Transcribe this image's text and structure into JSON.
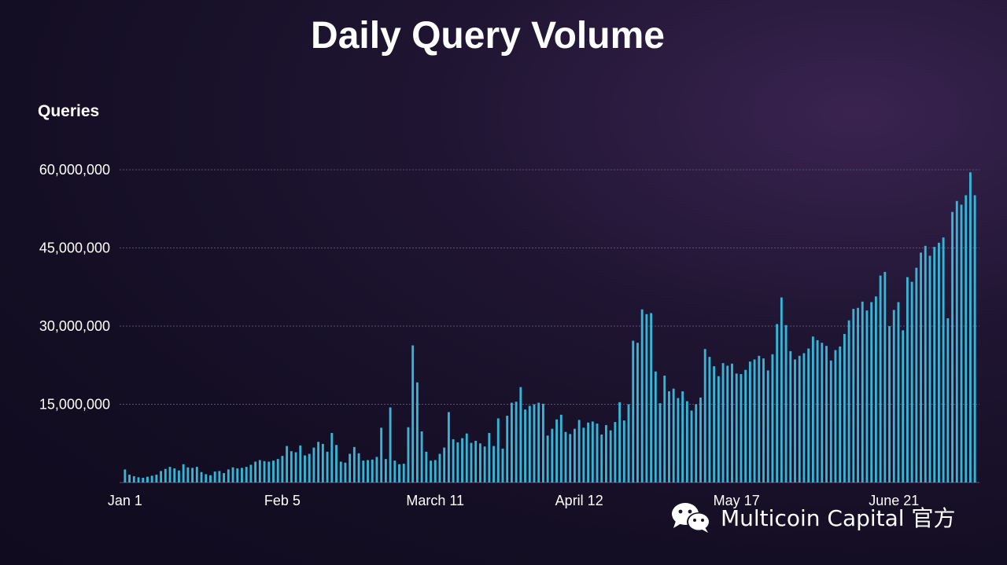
{
  "chart_data": {
    "type": "bar",
    "title": "Daily Query Volume",
    "ylabel": "Queries",
    "xlabel": "",
    "ylim": [
      0,
      60000000
    ],
    "yticks": [
      "15,000,000",
      "30,000,000",
      "45,000,000",
      "60,000,000"
    ],
    "ytick_values": [
      15000000,
      30000000,
      45000000,
      60000000
    ],
    "xticks": [
      "Jan 1",
      "Feb 5",
      "March 11",
      "April 12",
      "May 17",
      "June 21"
    ],
    "xtick_index": [
      0,
      35,
      69,
      101,
      136,
      171
    ],
    "grid": true,
    "bar_color": "#35b6d6",
    "values": [
      2.5,
      1.5,
      1.2,
      1.0,
      0.9,
      1.1,
      1.3,
      1.5,
      2.2,
      2.6,
      3.0,
      2.7,
      2.3,
      3.5,
      2.9,
      2.8,
      3.0,
      2.0,
      1.6,
      1.4,
      2.1,
      2.2,
      1.8,
      2.5,
      2.9,
      2.7,
      2.8,
      3.0,
      3.4,
      4.0,
      4.3,
      4.1,
      4.0,
      4.2,
      4.5,
      5.1,
      7.0,
      6.0,
      5.8,
      7.1,
      5.2,
      5.5,
      6.7,
      7.8,
      7.4,
      5.9,
      9.5,
      7.2,
      4.0,
      3.8,
      5.5,
      6.8,
      5.6,
      4.2,
      4.3,
      4.4,
      4.9,
      10.5,
      4.5,
      14.4,
      4.2,
      3.5,
      3.6,
      10.6,
      26.3,
      19.2,
      9.8,
      5.9,
      4.2,
      4.3,
      5.5,
      6.7,
      13.5,
      8.3,
      7.7,
      8.5,
      9.4,
      7.6,
      8.0,
      7.5,
      6.9,
      9.5,
      7.0,
      12.3,
      6.5,
      12.8,
      15.3,
      15.5,
      18.3,
      14.0,
      14.7,
      15.0,
      15.3,
      15.1,
      9.0,
      10.3,
      12.1,
      13.0,
      9.7,
      9.3,
      10.3,
      12.0,
      10.5,
      11.5,
      11.7,
      11.3,
      9.2,
      11.0,
      10.0,
      11.6,
      15.4,
      11.9,
      15.0,
      27.2,
      26.8,
      33.2,
      32.3,
      32.5,
      21.3,
      15.2,
      20.5,
      17.5,
      18.0,
      16.2,
      17.5,
      15.6,
      13.8,
      15.0,
      16.3,
      25.6,
      24.1,
      22.3,
      20.4,
      22.9,
      22.4,
      22.8,
      20.9,
      20.8,
      21.6,
      23.2,
      23.6,
      24.3,
      23.8,
      21.5,
      24.6,
      30.4,
      35.5,
      30.2,
      25.2,
      23.6,
      24.3,
      24.8,
      25.7,
      28.0,
      27.3,
      26.8,
      26.2,
      23.4,
      25.4,
      26.1,
      28.5,
      31.1,
      33.3,
      33.5,
      34.7,
      33.0,
      34.6,
      35.7,
      39.7,
      40.4,
      30.0,
      33.1,
      34.6,
      29.2,
      39.4,
      38.5,
      41.2,
      44.1,
      45.4,
      43.5,
      45.2,
      46.0,
      47.0,
      31.5,
      51.9,
      54.0,
      53.3,
      55.1,
      59.5,
      55.1
    ]
  },
  "watermark": {
    "icon": "wechat-icon",
    "text": "Multicoin Capital 官方"
  }
}
